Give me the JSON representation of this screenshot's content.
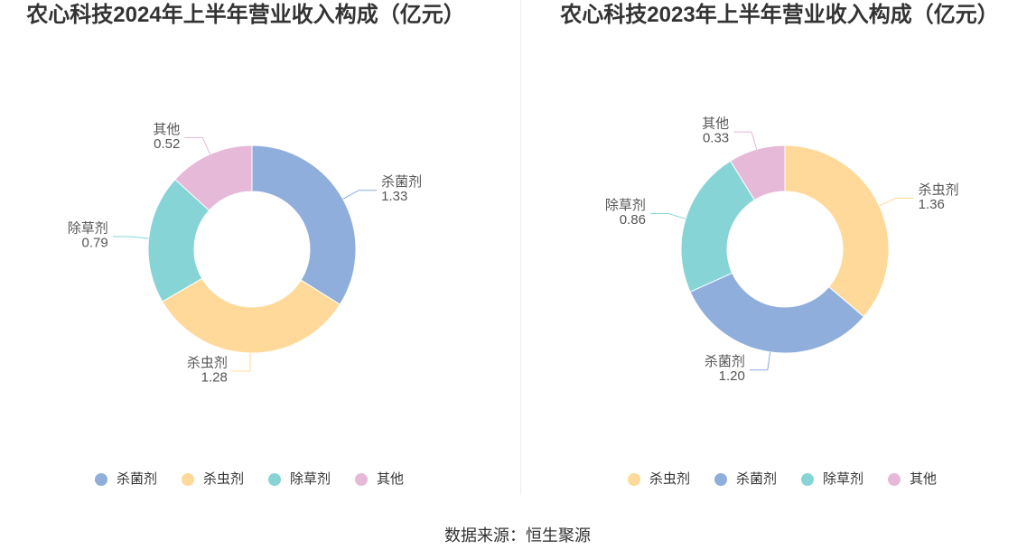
{
  "chart_data": [
    {
      "type": "pie",
      "donut": true,
      "title": "农心科技2024年上半年营业收入构成（亿元）",
      "categories": [
        "杀菌剂",
        "杀虫剂",
        "除草剂",
        "其他"
      ],
      "values": [
        1.33,
        1.28,
        0.79,
        0.52
      ],
      "colors": [
        "#8faedb",
        "#fed99a",
        "#87d4d7",
        "#e6b9d9"
      ],
      "legend": "bottom"
    },
    {
      "type": "pie",
      "donut": true,
      "title": "农心科技2023年上半年营业收入构成（亿元）",
      "categories": [
        "杀虫剂",
        "杀菌剂",
        "除草剂",
        "其他"
      ],
      "values": [
        1.36,
        1.2,
        0.86,
        0.33
      ],
      "colors": [
        "#fed99a",
        "#8faedb",
        "#87d4d7",
        "#e6b9d9"
      ],
      "legend": "bottom"
    }
  ],
  "source": "数据来源：恒生聚源"
}
